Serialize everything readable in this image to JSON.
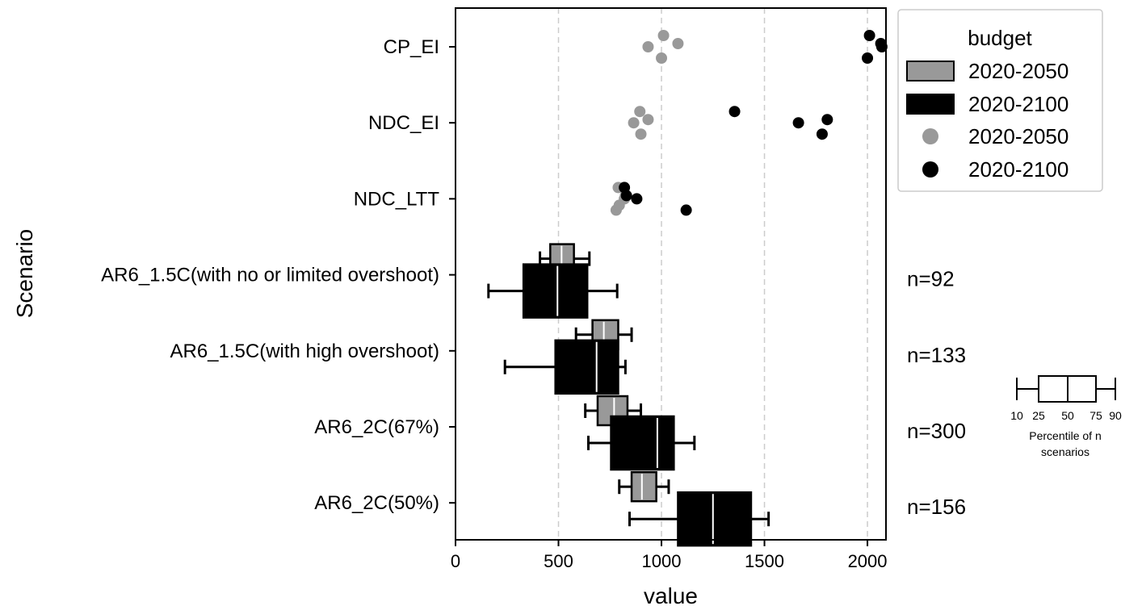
{
  "chart_data": {
    "type": "box",
    "orientation": "horizontal",
    "xlabel": "value",
    "ylabel": "Scenario",
    "xlim": [
      0,
      2090
    ],
    "xticks": [
      0,
      500,
      1000,
      1500,
      2000
    ],
    "grid": "vertical dashed at 500, 1000, 1500, 2000",
    "categories": [
      "CP_EI",
      "NDC_EI",
      "NDC_LTT",
      "AR6_1.5C(with no or limited overshoot)",
      "AR6_1.5C(with high overshoot)",
      "AR6_2C(67%)",
      "AR6_2C(50%)"
    ],
    "colors": {
      "2020-2050": "#999999",
      "2020-2100": "#000000"
    },
    "legend": {
      "title": "budget",
      "position": "outside-right-top",
      "entries": [
        {
          "label": "2020-2050",
          "kind": "box",
          "color": "#999999"
        },
        {
          "label": "2020-2100",
          "kind": "box",
          "color": "#000000"
        },
        {
          "label": "2020-2050",
          "kind": "point",
          "color": "#999999"
        },
        {
          "label": "2020-2100",
          "kind": "point",
          "color": "#000000"
        }
      ]
    },
    "points": [
      {
        "category": "CP_EI",
        "budget": "2020-2050",
        "values": [
          1010,
          935,
          1000,
          1080
        ]
      },
      {
        "category": "CP_EI",
        "budget": "2020-2100",
        "values": [
          2010,
          2070,
          2000,
          2065
        ]
      },
      {
        "category": "NDC_EI",
        "budget": "2020-2050",
        "values": [
          895,
          865,
          900,
          935
        ]
      },
      {
        "category": "NDC_EI",
        "budget": "2020-2100",
        "values": [
          1355,
          1665,
          1780,
          1805
        ]
      },
      {
        "category": "NDC_LTT",
        "budget": "2020-2050",
        "values": [
          790,
          820,
          780,
          825,
          795
        ]
      },
      {
        "category": "NDC_LTT",
        "budget": "2020-2100",
        "values": [
          820,
          880,
          1120,
          830
        ]
      }
    ],
    "boxes": [
      {
        "category": "AR6_1.5C(with no or limited overshoot)",
        "budget": "2020-2050",
        "p10": 410,
        "p25": 460,
        "p50": 515,
        "p75": 575,
        "p90": 650
      },
      {
        "category": "AR6_1.5C(with no or limited overshoot)",
        "budget": "2020-2100",
        "p10": 160,
        "p25": 330,
        "p50": 495,
        "p75": 640,
        "p90": 785
      },
      {
        "category": "AR6_1.5C(with high overshoot)",
        "budget": "2020-2050",
        "p10": 585,
        "p25": 665,
        "p50": 720,
        "p75": 790,
        "p90": 855
      },
      {
        "category": "AR6_1.5C(with high overshoot)",
        "budget": "2020-2100",
        "p10": 240,
        "p25": 485,
        "p50": 685,
        "p75": 790,
        "p90": 825
      },
      {
        "category": "AR6_2C(67%)",
        "budget": "2020-2050",
        "p10": 630,
        "p25": 690,
        "p50": 770,
        "p75": 835,
        "p90": 900
      },
      {
        "category": "AR6_2C(67%)",
        "budget": "2020-2100",
        "p10": 645,
        "p25": 755,
        "p50": 980,
        "p75": 1060,
        "p90": 1160
      },
      {
        "category": "AR6_2C(50%)",
        "budget": "2020-2050",
        "p10": 795,
        "p25": 855,
        "p50": 905,
        "p75": 975,
        "p90": 1035
      },
      {
        "category": "AR6_2C(50%)",
        "budget": "2020-2100",
        "p10": 845,
        "p25": 1080,
        "p50": 1250,
        "p75": 1435,
        "p90": 1520
      }
    ],
    "n_labels": [
      {
        "category": "AR6_1.5C(with no or limited overshoot)",
        "text": "n=92"
      },
      {
        "category": "AR6_1.5C(with high overshoot)",
        "text": "n=133"
      },
      {
        "category": "AR6_2C(67%)",
        "text": "n=300"
      },
      {
        "category": "AR6_2C(50%)",
        "text": "n=156"
      }
    ],
    "percentile_key": {
      "tick_labels": [
        "10",
        "25",
        "50",
        "75",
        "90"
      ],
      "caption_lines": [
        "Percentile of n",
        "scenarios"
      ]
    }
  }
}
